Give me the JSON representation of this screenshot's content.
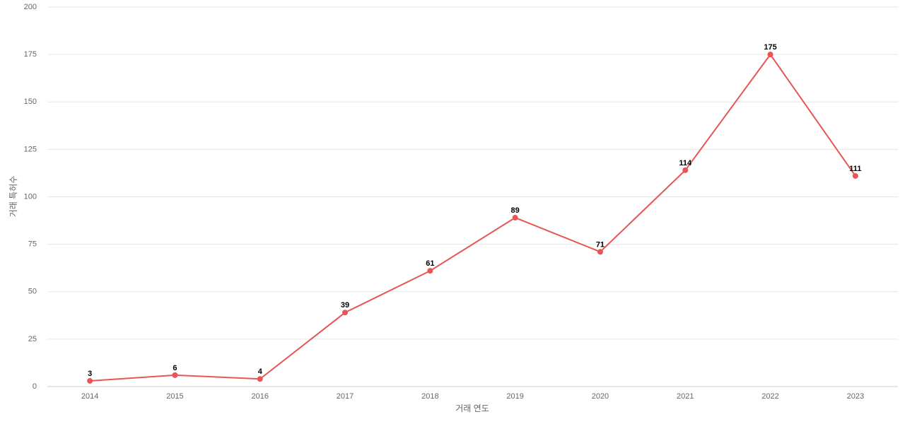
{
  "chart_data": {
    "type": "line",
    "x_label": "거래 연도",
    "y_label": "거래 특허수",
    "categories": [
      "2014",
      "2015",
      "2016",
      "2017",
      "2018",
      "2019",
      "2020",
      "2021",
      "2022",
      "2023"
    ],
    "series": [
      {
        "name": "거래 특허수",
        "color": "#e85555",
        "values": [
          3,
          6,
          4,
          39,
          61,
          89,
          71,
          114,
          175,
          111
        ]
      }
    ],
    "ylim": [
      0,
      200
    ],
    "yticks": [
      0,
      25,
      50,
      75,
      100,
      125,
      150,
      175,
      200
    ],
    "grid": true
  }
}
